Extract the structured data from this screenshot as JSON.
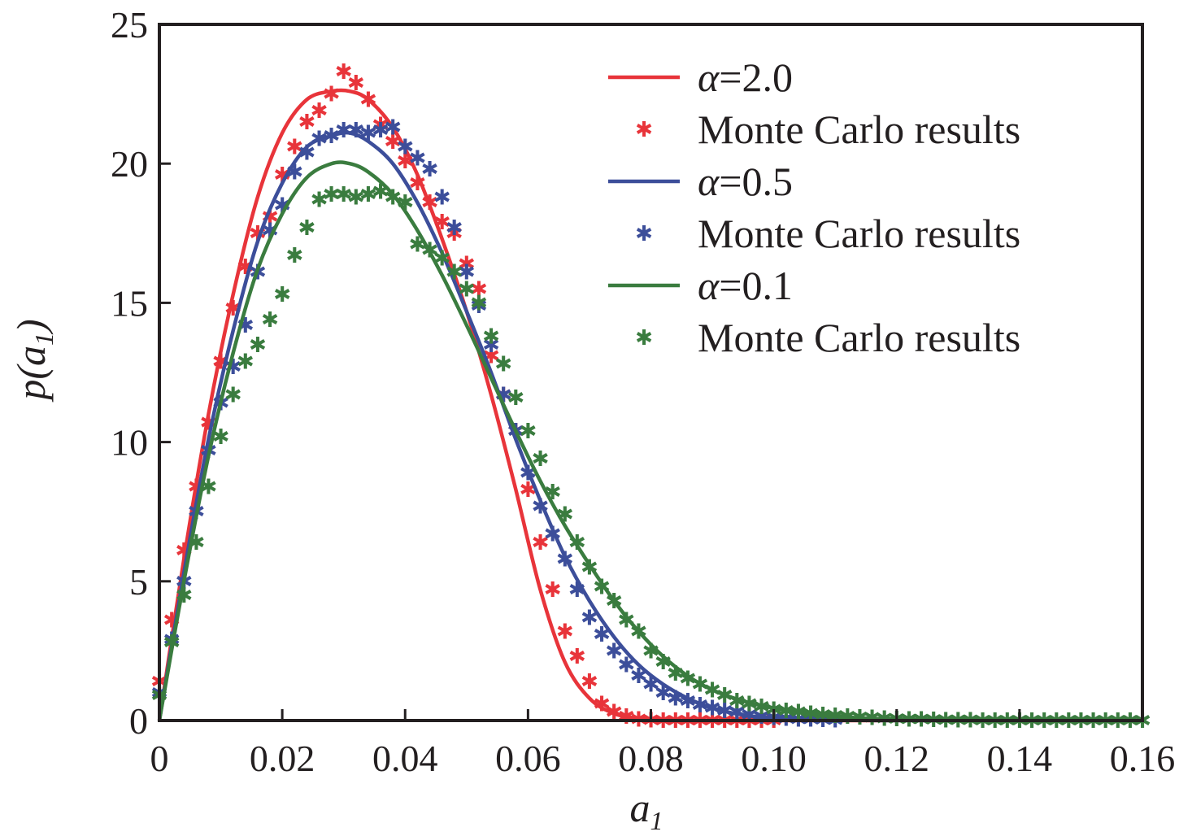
{
  "chart_data": {
    "type": "line",
    "title": "",
    "xlabel": "a",
    "xlabel_subscript": "1",
    "ylabel_prefix": "p(",
    "ylabel_var": "a",
    "ylabel_subscript": "1",
    "ylabel_suffix": ")",
    "xlim": [
      0,
      0.16
    ],
    "ylim": [
      0,
      25
    ],
    "xticks": [
      0,
      0.02,
      0.04,
      0.06,
      0.08,
      0.1,
      0.12,
      0.14,
      0.16
    ],
    "xtick_labels": [
      "0",
      "0.02",
      "0.04",
      "0.06",
      "0.08",
      "0.10",
      "0.12",
      "0.14",
      "0.16"
    ],
    "yticks": [
      0,
      5,
      10,
      15,
      20,
      25
    ],
    "ytick_labels": [
      "0",
      "5",
      "10",
      "15",
      "20",
      "25"
    ],
    "grid": false,
    "legend_position": "top-right",
    "series": [
      {
        "name": "α=2.0",
        "legend_greek": "α",
        "legend_rest": "=2.0",
        "color": "#e8343a",
        "kind": "line",
        "x": [
          0,
          0.004,
          0.008,
          0.012,
          0.016,
          0.02,
          0.024,
          0.028,
          0.031,
          0.034,
          0.038,
          0.042,
          0.046,
          0.05,
          0.054,
          0.058,
          0.062,
          0.066,
          0.07,
          0.074,
          0.078,
          0.082,
          0.086,
          0.09,
          0.1,
          0.12,
          0.16
        ],
        "y": [
          0,
          5.8,
          11.0,
          15.3,
          18.8,
          21.1,
          22.3,
          22.6,
          22.6,
          22.3,
          21.3,
          19.6,
          17.3,
          14.7,
          11.7,
          8.3,
          4.7,
          2.1,
          0.8,
          0.25,
          0.08,
          0.02,
          0,
          0,
          0,
          0,
          0
        ]
      },
      {
        "name": "Monte Carlo results",
        "color": "#e8343a",
        "kind": "markers",
        "marker": "✱",
        "x": [
          0,
          0.002,
          0.004,
          0.006,
          0.008,
          0.01,
          0.012,
          0.014,
          0.016,
          0.018,
          0.02,
          0.022,
          0.024,
          0.026,
          0.028,
          0.03,
          0.032,
          0.034,
          0.036,
          0.038,
          0.04,
          0.042,
          0.044,
          0.046,
          0.048,
          0.05,
          0.052,
          0.054,
          0.056,
          0.058,
          0.06,
          0.062,
          0.064,
          0.066,
          0.068,
          0.07,
          0.072,
          0.074,
          0.076,
          0.078,
          0.08,
          0.082,
          0.084,
          0.086,
          0.088,
          0.09,
          0.092,
          0.094,
          0.096,
          0.098,
          0.1
        ],
        "y": [
          1.4,
          3.6,
          6.1,
          8.4,
          10.7,
          12.9,
          14.8,
          16.3,
          17.5,
          18.1,
          19.6,
          20.6,
          21.5,
          21.9,
          22.5,
          23.3,
          22.9,
          22.3,
          21.4,
          20.8,
          20.1,
          19.3,
          18.6,
          17.9,
          17.5,
          16.4,
          15.5,
          13.1,
          11.7,
          10.4,
          8.3,
          6.4,
          4.7,
          3.2,
          2.3,
          1.4,
          0.6,
          0.3,
          0.15,
          0.05,
          0.02,
          0,
          0,
          0,
          0,
          0,
          0,
          0,
          0,
          0,
          0
        ]
      },
      {
        "name": "α=0.5",
        "legend_greek": "α",
        "legend_rest": "=0.5",
        "color": "#3c4e9a",
        "kind": "line",
        "x": [
          0,
          0.004,
          0.008,
          0.012,
          0.016,
          0.02,
          0.024,
          0.028,
          0.031,
          0.034,
          0.038,
          0.042,
          0.046,
          0.05,
          0.054,
          0.058,
          0.062,
          0.066,
          0.07,
          0.074,
          0.078,
          0.082,
          0.086,
          0.09,
          0.095,
          0.1,
          0.11,
          0.12,
          0.16
        ],
        "y": [
          0,
          5.3,
          10.1,
          14.0,
          17.2,
          19.3,
          20.6,
          21.0,
          21.1,
          20.8,
          20.0,
          18.6,
          16.8,
          14.7,
          12.5,
          10.1,
          7.9,
          5.9,
          4.3,
          3.0,
          2.0,
          1.3,
          0.8,
          0.45,
          0.2,
          0.1,
          0.03,
          0,
          0
        ]
      },
      {
        "name": "Monte Carlo results",
        "color": "#3c4e9a",
        "kind": "markers",
        "marker": "✱",
        "x": [
          0,
          0.002,
          0.004,
          0.006,
          0.008,
          0.01,
          0.012,
          0.014,
          0.016,
          0.018,
          0.02,
          0.022,
          0.024,
          0.026,
          0.028,
          0.03,
          0.032,
          0.034,
          0.036,
          0.038,
          0.04,
          0.042,
          0.044,
          0.046,
          0.048,
          0.05,
          0.052,
          0.054,
          0.056,
          0.058,
          0.06,
          0.062,
          0.064,
          0.066,
          0.068,
          0.07,
          0.072,
          0.074,
          0.076,
          0.078,
          0.08,
          0.082,
          0.084,
          0.086,
          0.088,
          0.09,
          0.092,
          0.094,
          0.096,
          0.098,
          0.1,
          0.102,
          0.104,
          0.106,
          0.108,
          0.11
        ],
        "y": [
          1.0,
          2.9,
          5.0,
          7.5,
          9.7,
          11.4,
          12.7,
          14.2,
          16.1,
          17.6,
          18.5,
          19.7,
          20.4,
          20.9,
          21.0,
          21.2,
          21.2,
          21.1,
          21.2,
          21.3,
          20.6,
          20.2,
          19.8,
          18.8,
          17.7,
          16.1,
          14.9,
          13.5,
          11.7,
          10.4,
          8.9,
          7.7,
          6.7,
          5.8,
          4.7,
          3.7,
          3.1,
          2.5,
          2.0,
          1.6,
          1.3,
          1.0,
          0.8,
          0.7,
          0.55,
          0.45,
          0.35,
          0.3,
          0.2,
          0.15,
          0.1,
          0.08,
          0.05,
          0.04,
          0.03,
          0.02
        ]
      },
      {
        "name": "α=0.1",
        "legend_greek": "α",
        "legend_rest": "=0.1",
        "color": "#3a7c3f",
        "kind": "line",
        "x": [
          0,
          0.004,
          0.008,
          0.012,
          0.016,
          0.02,
          0.024,
          0.028,
          0.031,
          0.034,
          0.038,
          0.042,
          0.046,
          0.05,
          0.054,
          0.058,
          0.062,
          0.066,
          0.07,
          0.074,
          0.078,
          0.082,
          0.086,
          0.09,
          0.095,
          0.1,
          0.105,
          0.11,
          0.12,
          0.16
        ],
        "y": [
          0,
          5.0,
          9.5,
          13.2,
          16.2,
          18.2,
          19.5,
          20.0,
          20.0,
          19.7,
          18.9,
          17.6,
          16.0,
          14.2,
          12.3,
          10.4,
          8.6,
          7.0,
          5.6,
          4.3,
          3.2,
          2.3,
          1.6,
          1.1,
          0.7,
          0.45,
          0.3,
          0.18,
          0.05,
          0
        ]
      },
      {
        "name": "Monte Carlo results",
        "color": "#3a7c3f",
        "kind": "markers",
        "marker": "✱",
        "x": [
          0,
          0.002,
          0.004,
          0.006,
          0.008,
          0.01,
          0.012,
          0.014,
          0.016,
          0.018,
          0.02,
          0.022,
          0.024,
          0.026,
          0.028,
          0.03,
          0.032,
          0.034,
          0.036,
          0.038,
          0.04,
          0.042,
          0.044,
          0.046,
          0.048,
          0.05,
          0.052,
          0.054,
          0.056,
          0.058,
          0.06,
          0.062,
          0.064,
          0.066,
          0.068,
          0.07,
          0.072,
          0.074,
          0.076,
          0.078,
          0.08,
          0.082,
          0.084,
          0.086,
          0.088,
          0.09,
          0.092,
          0.094,
          0.096,
          0.098,
          0.1,
          0.102,
          0.104,
          0.106,
          0.108,
          0.11,
          0.112,
          0.114,
          0.116,
          0.118,
          0.12,
          0.122,
          0.124,
          0.126,
          0.128,
          0.13,
          0.132,
          0.134,
          0.136,
          0.138,
          0.14,
          0.142,
          0.144,
          0.146,
          0.148,
          0.15,
          0.152,
          0.154,
          0.156,
          0.158,
          0.16
        ],
        "y": [
          0.9,
          2.8,
          4.5,
          6.4,
          8.4,
          10.2,
          11.7,
          12.9,
          13.5,
          14.4,
          15.3,
          16.7,
          17.7,
          18.7,
          18.9,
          18.9,
          18.8,
          18.9,
          19.0,
          18.8,
          18.6,
          17.1,
          16.9,
          16.6,
          16.1,
          15.5,
          15.0,
          13.8,
          12.8,
          11.6,
          10.4,
          9.4,
          8.2,
          7.4,
          6.4,
          5.5,
          4.8,
          4.3,
          3.6,
          3.2,
          2.5,
          2.1,
          1.7,
          1.5,
          1.3,
          1.1,
          0.9,
          0.7,
          0.6,
          0.5,
          0.4,
          0.35,
          0.3,
          0.25,
          0.2,
          0.18,
          0.15,
          0.12,
          0.1,
          0.08,
          0.06,
          0.05,
          0.04,
          0.03,
          0.02,
          0.02,
          0.01,
          0,
          0,
          0,
          0,
          0,
          0,
          0,
          0,
          0,
          0,
          0,
          0,
          0,
          0
        ]
      }
    ]
  }
}
